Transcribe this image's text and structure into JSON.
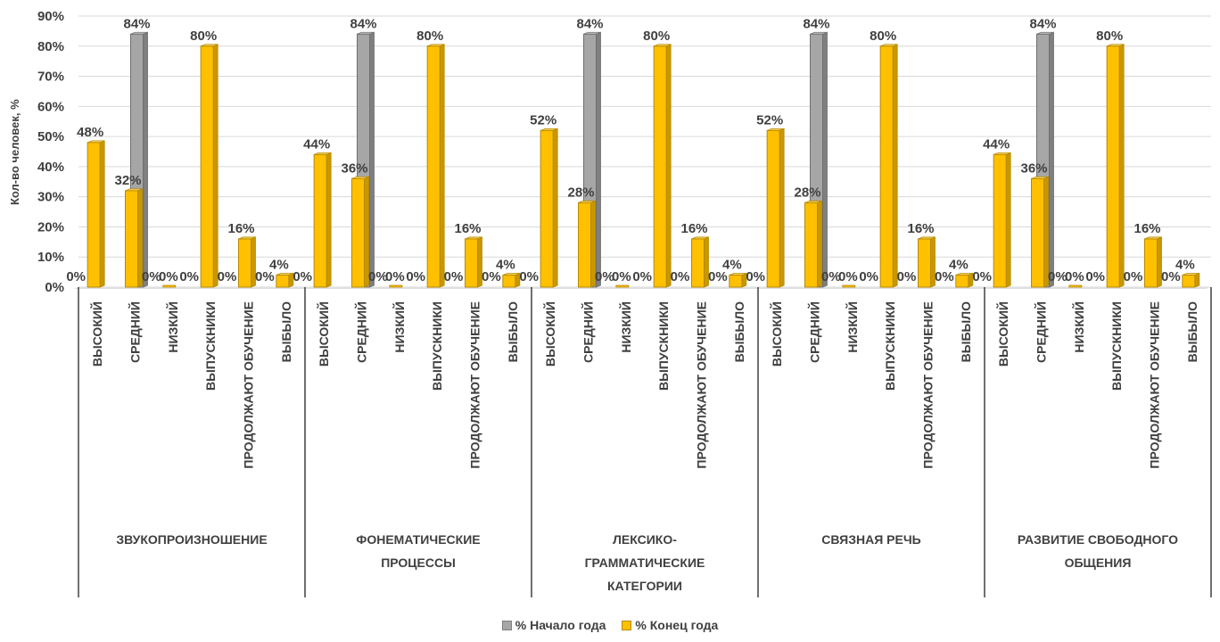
{
  "chart_data": {
    "type": "bar",
    "ylabel": "Кол-во человек, %",
    "ylim": [
      0,
      90
    ],
    "yticks": [
      "0%",
      "10%",
      "20%",
      "30%",
      "40%",
      "50%",
      "60%",
      "70%",
      "80%",
      "90%"
    ],
    "grid": true,
    "legend_position": "bottom",
    "groups": [
      "ЗВУКОПРОИЗНОШЕНИЕ",
      "ФОНЕМАТИЧЕСКИЕ ПРОЦЕССЫ",
      "ЛЕКСИКО-ГРАММАТИЧЕСКИЕ КАТЕГОРИИ",
      "СВЯЗНАЯ РЕЧЬ",
      "РАЗВИТИЕ СВОБОДНОГО ОБЩЕНИЯ"
    ],
    "group_label_lines": [
      [
        "ЗВУКОПРОИЗНОШЕНИЕ"
      ],
      [
        "ФОНЕМАТИЧЕСКИЕ",
        "ПРОЦЕССЫ"
      ],
      [
        "ЛЕКСИКО-",
        "ГРАММАТИЧЕСКИЕ",
        "КАТЕГОРИИ"
      ],
      [
        "СВЯЗНАЯ РЕЧЬ"
      ],
      [
        "РАЗВИТИЕ СВОБОДНОГО",
        "ОБЩЕНИЯ"
      ]
    ],
    "categories": [
      "ВЫСОКИЙ",
      "СРЕДНИЙ",
      "НИЗКИЙ",
      "ВЫПУСКНИКИ",
      "ПРОДОЛЖАЮТ ОБУЧЕНИЕ",
      "ВЫБЫЛО"
    ],
    "series": [
      {
        "name": "% Начало года",
        "color": "#A6A6A6",
        "values": [
          [
            0,
            84,
            0,
            0,
            0,
            0
          ],
          [
            0,
            84,
            0,
            0,
            0,
            0
          ],
          [
            0,
            84,
            0,
            0,
            0,
            0
          ],
          [
            0,
            84,
            0,
            0,
            0,
            0
          ],
          [
            0,
            84,
            0,
            0,
            0,
            0
          ]
        ]
      },
      {
        "name": "% Конец года",
        "color": "#FFC000",
        "values": [
          [
            48,
            32,
            0,
            80,
            16,
            4
          ],
          [
            44,
            36,
            0,
            80,
            16,
            4
          ],
          [
            52,
            28,
            0,
            80,
            16,
            4
          ],
          [
            52,
            28,
            0,
            80,
            16,
            4
          ],
          [
            44,
            36,
            0,
            80,
            16,
            4
          ]
        ]
      }
    ],
    "data_label_format": "{v}%"
  }
}
